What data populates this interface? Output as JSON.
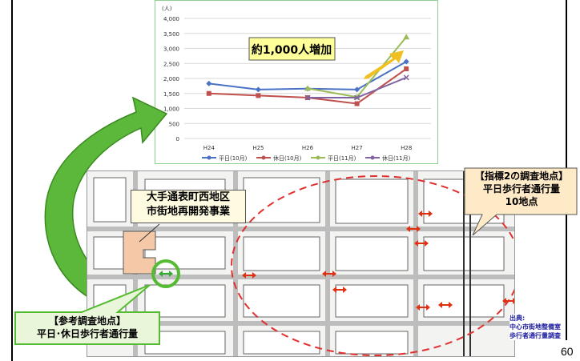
{
  "chart_data": {
    "type": "line",
    "y_unit": "(人)",
    "ylim": [
      0,
      4000
    ],
    "yticks": [
      "0",
      "500",
      "1,000",
      "1,500",
      "2,000",
      "2,500",
      "3,000",
      "3,500",
      "4,000"
    ],
    "categories": [
      "H24",
      "H25",
      "H26",
      "H27",
      "H28"
    ],
    "series": [
      {
        "name": "平日(10月)",
        "color": "#4a72c4",
        "marker": "diamond",
        "values": [
          1830,
          1630,
          1660,
          1630,
          2560
        ]
      },
      {
        "name": "休日(10月)",
        "color": "#c0504d",
        "marker": "square",
        "values": [
          1500,
          1430,
          1360,
          1160,
          2320
        ]
      },
      {
        "name": "平日(11月)",
        "color": "#9bbb59",
        "marker": "triangle",
        "values": [
          null,
          null,
          1670,
          1380,
          3380
        ]
      },
      {
        "name": "休日(11月)",
        "color": "#8064a2",
        "marker": "x",
        "values": [
          null,
          null,
          1360,
          1360,
          2030
        ]
      }
    ],
    "annotation": "約1,000人増加",
    "grid": true,
    "legend": "bottom"
  },
  "callouts": {
    "indicator_title": "【指標2の調査地点】",
    "indicator_line1": "平日歩行者通行量",
    "indicator_line2": "10地点",
    "reference_title": "【参考調査地点】",
    "reference_line1": "平日･休日歩行者通行量",
    "development_line1": "大手通表町西地区",
    "development_line2": "市街地再開発事業"
  },
  "source": {
    "label": "出典:",
    "line1": "中心市街地整備室",
    "line2": "歩行者通行量調査"
  },
  "page_number": "60",
  "colors": {
    "green_arrow": "#4aaa2a",
    "annotation_bg": "#ffff99",
    "highlight_arrow": "#f0c020",
    "dashed_ellipse": "#e03030",
    "red_arrow": "#e03010",
    "ref_circle": "#55bb33"
  }
}
